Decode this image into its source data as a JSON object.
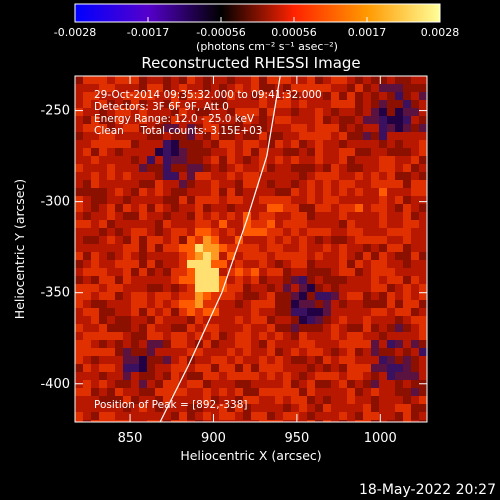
{
  "chart_data": {
    "type": "heatmap",
    "title": "Reconstructed RHESSI Image",
    "xlabel": "Heliocentric X (arcsec)",
    "ylabel": "Heliocentric Y (arcsec)",
    "xlim": [
      817,
      1028
    ],
    "ylim": [
      -421,
      -231
    ],
    "xticks": [
      850,
      900,
      950,
      1000
    ],
    "yticks": [
      -250,
      -300,
      -350,
      -400
    ],
    "colorbar": {
      "ticks": [
        "-0.0028",
        "-0.0017",
        "-0.00056",
        "0.00056",
        "0.0017",
        "0.0028"
      ],
      "range": [
        -0.0028,
        0.0028
      ],
      "units_label": "(photons cm⁻² s⁻¹ asec⁻²)",
      "colors": [
        "#0000ff",
        "#5500cc",
        "#000000",
        "#ff2200",
        "#ff9900",
        "#ffff99"
      ]
    },
    "info_lines": [
      "29-Oct-2014 09:35:32.000 to 09:41:32.000",
      "Detectors: 3F 6F 9F, Att 0",
      "Energy Range: 12.0 - 25.0 keV",
      "Clean     Total counts: 3.15E+03"
    ],
    "peak_label": "Position of Peak = [892,-338]",
    "peak": [
      892,
      -338
    ],
    "limb_curve": [
      [
        868,
        -421
      ],
      [
        885,
        -390
      ],
      [
        905,
        -350
      ],
      [
        920,
        -310
      ],
      [
        932,
        -275
      ],
      [
        940,
        -231
      ]
    ]
  },
  "footer": {
    "timestamp": "18-May-2022 20:27"
  }
}
